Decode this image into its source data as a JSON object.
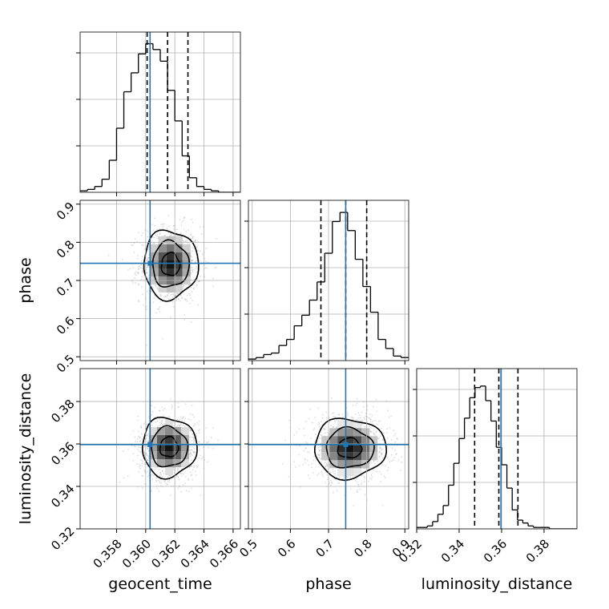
{
  "chart_data": {
    "type": "corner",
    "grid": true,
    "truth_color": "#1f77b4",
    "parameters": [
      {
        "id": "geocent_time",
        "label": "geocent_time",
        "range": [
          0.3555,
          0.3665
        ],
        "ticks": [
          0.358,
          0.36,
          0.362,
          0.364,
          0.366
        ],
        "tick_labels": [
          "0.358",
          "0.360",
          "0.362",
          "0.364",
          "0.366"
        ],
        "truth": 0.3603,
        "quantiles": [
          0.3601,
          0.3615,
          0.3629
        ]
      },
      {
        "id": "phase",
        "label": "phase",
        "range": [
          0.49,
          0.91
        ],
        "ticks": [
          0.5,
          0.6,
          0.7,
          0.8,
          0.9
        ],
        "tick_labels": [
          "0.5",
          "0.6",
          "0.7",
          "0.8",
          "0.9"
        ],
        "truth": 0.745,
        "quantiles": [
          0.68,
          0.745,
          0.8
        ]
      },
      {
        "id": "luminosity_distance",
        "label": "luminosity_distance",
        "range": [
          0.32,
          0.3955
        ],
        "ticks": [
          0.32,
          0.34,
          0.36,
          0.38
        ],
        "tick_labels": [
          "0.32",
          "0.34",
          "0.36",
          "0.38"
        ],
        "truth": 0.3597,
        "quantiles": [
          0.3473,
          0.3587,
          0.3677
        ]
      }
    ],
    "histograms": [
      {
        "param": "geocent_time",
        "edges": [
          0.3555,
          0.356,
          0.3565,
          0.357,
          0.3575,
          0.358,
          0.3585,
          0.359,
          0.3595,
          0.36,
          0.3605,
          0.361,
          0.3615,
          0.362,
          0.3625,
          0.363,
          0.3635,
          0.364,
          0.3645,
          0.365,
          0.3655,
          0.366,
          0.3665
        ],
        "counts": [
          1,
          2,
          4,
          9,
          22,
          44,
          69,
          82,
          95,
          102,
          98,
          90,
          70,
          49,
          25,
          10,
          4,
          2,
          1,
          0,
          0,
          0
        ],
        "ymax": 110
      },
      {
        "param": "phase",
        "edges": [
          0.49,
          0.51,
          0.53,
          0.55,
          0.57,
          0.59,
          0.61,
          0.63,
          0.65,
          0.67,
          0.69,
          0.71,
          0.73,
          0.75,
          0.77,
          0.79,
          0.81,
          0.83,
          0.85,
          0.87,
          0.89,
          0.91
        ],
        "counts": [
          1,
          2,
          4,
          5,
          10,
          14,
          23,
          30,
          40,
          52,
          71,
          92,
          98,
          86,
          67,
          49,
          32,
          14,
          8,
          3,
          2
        ],
        "ymax": 106
      },
      {
        "param": "luminosity_distance",
        "edges": [
          0.32,
          0.3225,
          0.325,
          0.3275,
          0.33,
          0.3325,
          0.335,
          0.3375,
          0.34,
          0.3425,
          0.345,
          0.3475,
          0.35,
          0.3525,
          0.355,
          0.3575,
          0.36,
          0.3625,
          0.365,
          0.3675,
          0.37,
          0.3725,
          0.375,
          0.3775,
          0.38,
          0.3825,
          0.385,
          0.3875,
          0.39,
          0.3925,
          0.3955
        ],
        "counts": [
          1,
          1,
          2,
          5,
          10,
          16,
          30,
          45,
          62,
          76,
          90,
          97,
          98,
          88,
          74,
          56,
          44,
          28,
          13,
          6,
          4,
          2,
          1,
          1,
          1,
          0,
          0,
          0,
          0,
          0
        ],
        "ymax": 110
      }
    ],
    "pairs": [
      {
        "x": "geocent_time",
        "y": "phase",
        "mean": [
          0.3617,
          0.742
        ],
        "std": [
          0.001,
          0.048
        ],
        "levels": [
          0.5,
          1.0,
          1.5
        ]
      },
      {
        "x": "geocent_time",
        "y": "luminosity_distance",
        "mean": [
          0.3616,
          0.3585
        ],
        "std": [
          0.001,
          0.0075
        ],
        "levels": [
          0.5,
          1.0,
          1.5
        ]
      },
      {
        "x": "phase",
        "y": "luminosity_distance",
        "mean": [
          0.755,
          0.358
        ],
        "std": [
          0.05,
          0.0075
        ],
        "levels": [
          0.5,
          1.0,
          1.5
        ]
      }
    ],
    "xlabels": [
      "geocent_time",
      "phase",
      "luminosity_distance"
    ],
    "ylabels": [
      "",
      "phase",
      "luminosity_distance"
    ]
  }
}
